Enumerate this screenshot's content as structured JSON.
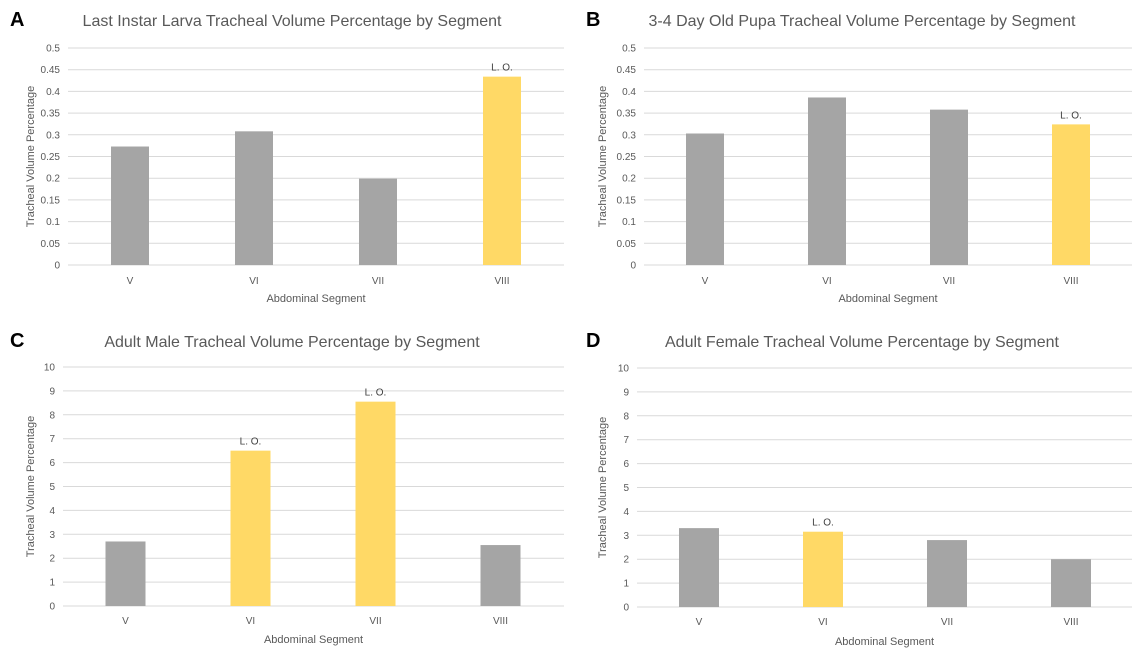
{
  "chart_data": [
    {
      "panel": "A",
      "type": "bar",
      "title": "Last Instar Larva Tracheal Volume Percentage by Segment",
      "xlabel": "Abdominal Segment",
      "ylabel": "Tracheal Volume Percentage",
      "categories": [
        "V",
        "VI",
        "VII",
        "VIII"
      ],
      "values": [
        0.273,
        0.308,
        0.199,
        0.434
      ],
      "highlight": [
        false,
        false,
        false,
        true
      ],
      "data_labels": [
        "",
        "",
        "",
        "L. O."
      ],
      "ylim": [
        0,
        0.5
      ],
      "yticks": [
        "0",
        "0.05",
        "0.1",
        "0.15",
        "0.2",
        "0.25",
        "0.3",
        "0.35",
        "0.4",
        "0.45",
        "0.5"
      ],
      "grid": true
    },
    {
      "panel": "B",
      "type": "bar",
      "title": "3-4 Day Old Pupa Tracheal Volume Percentage by Segment",
      "xlabel": "Abdominal Segment",
      "ylabel": "Tracheal Volume Percentage",
      "categories": [
        "V",
        "VI",
        "VII",
        "VIII"
      ],
      "values": [
        0.303,
        0.386,
        0.358,
        0.324
      ],
      "highlight": [
        false,
        false,
        false,
        true
      ],
      "data_labels": [
        "",
        "",
        "",
        "L. O."
      ],
      "ylim": [
        0,
        0.5
      ],
      "yticks": [
        "0",
        "0.05",
        "0.1",
        "0.15",
        "0.2",
        "0.25",
        "0.3",
        "0.35",
        "0.4",
        "0.45",
        "0.5"
      ],
      "grid": true
    },
    {
      "panel": "C",
      "type": "bar",
      "title": "Adult Male Tracheal Volume Percentage by Segment",
      "xlabel": "Abdominal Segment",
      "ylabel": "Tracheal Volume Percentage",
      "categories": [
        "V",
        "VI",
        "VII",
        "VIII"
      ],
      "values": [
        2.7,
        6.5,
        8.55,
        2.55
      ],
      "highlight": [
        false,
        true,
        true,
        false
      ],
      "data_labels": [
        "",
        "L. O.",
        "L. O.",
        ""
      ],
      "ylim": [
        0,
        10
      ],
      "yticks": [
        "0",
        "1",
        "2",
        "3",
        "4",
        "5",
        "6",
        "7",
        "8",
        "9",
        "10"
      ],
      "grid": true
    },
    {
      "panel": "D",
      "type": "bar",
      "title": "Adult Female Tracheal Volume Percentage by Segment",
      "xlabel": "Abdominal Segment",
      "ylabel": "Tracheal Volume Percentage",
      "categories": [
        "V",
        "VI",
        "VII",
        "VIII"
      ],
      "values": [
        3.3,
        3.15,
        2.8,
        2.0
      ],
      "highlight": [
        false,
        true,
        false,
        false
      ],
      "data_labels": [
        "",
        "L. O.",
        "",
        ""
      ],
      "ylim": [
        0,
        10
      ],
      "yticks": [
        "0",
        "1",
        "2",
        "3",
        "4",
        "5",
        "6",
        "7",
        "8",
        "9",
        "10"
      ],
      "grid": true
    }
  ],
  "colors": {
    "bar": "#a5a5a5",
    "highlight": "#ffd966",
    "grid": "#d9d9d9",
    "text": "#595959"
  }
}
